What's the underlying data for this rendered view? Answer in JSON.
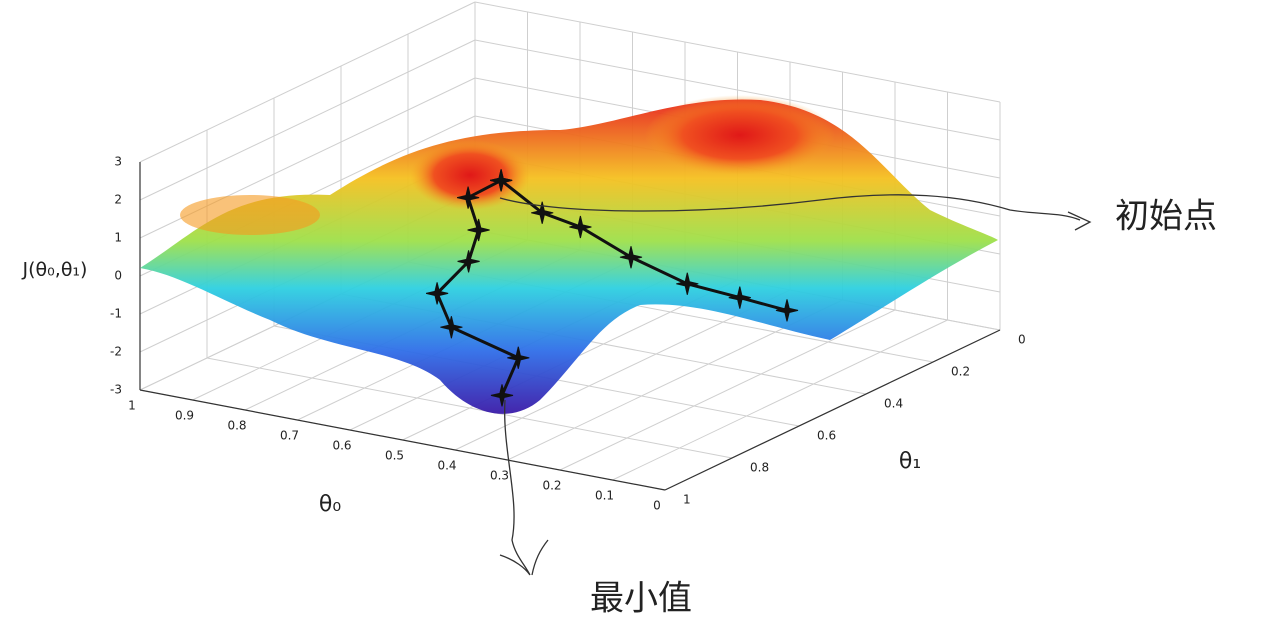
{
  "chart_data": {
    "type": "surface",
    "z_label": "J(θ₀,θ₁)",
    "x_label": "θ₀",
    "y_label": "θ₁",
    "xlim": [
      0,
      1
    ],
    "ylim": [
      0,
      1
    ],
    "zlim": [
      -3,
      3
    ],
    "xticks": [
      0,
      0.1,
      0.2,
      0.3,
      0.4,
      0.5,
      0.6,
      0.7,
      0.8,
      0.9,
      1
    ],
    "yticks": [
      0,
      0.2,
      0.4,
      0.6,
      0.8,
      1
    ],
    "zticks": [
      -3,
      -2,
      -1,
      0,
      1,
      2,
      3
    ],
    "grid": true,
    "paths": [
      {
        "color": "#111111",
        "x": [
          0.51,
          0.56,
          0.54,
          0.54,
          0.6,
          0.56,
          0.49,
          0.47
        ],
        "y": [
          0.69,
          0.71,
          0.71,
          0.74,
          0.74,
          0.76,
          0.67,
          0.75
        ],
        "z": [
          2.5,
          2,
          1.2,
          0.5,
          -0.5,
          -1.2,
          -2.2,
          -2.8
        ]
      },
      {
        "color": "#111111",
        "x": [
          0.51,
          0.47,
          0.41,
          0.32,
          0.2,
          0.1,
          0.01
        ],
        "y": [
          0.69,
          0.63,
          0.61,
          0.6,
          0.62,
          0.62,
          0.62
        ],
        "z": [
          2.5,
          1.5,
          1.2,
          0.6,
          0.3,
          0.2,
          0.1
        ]
      }
    ],
    "annotations": [
      "初始点",
      "最小值"
    ]
  }
}
